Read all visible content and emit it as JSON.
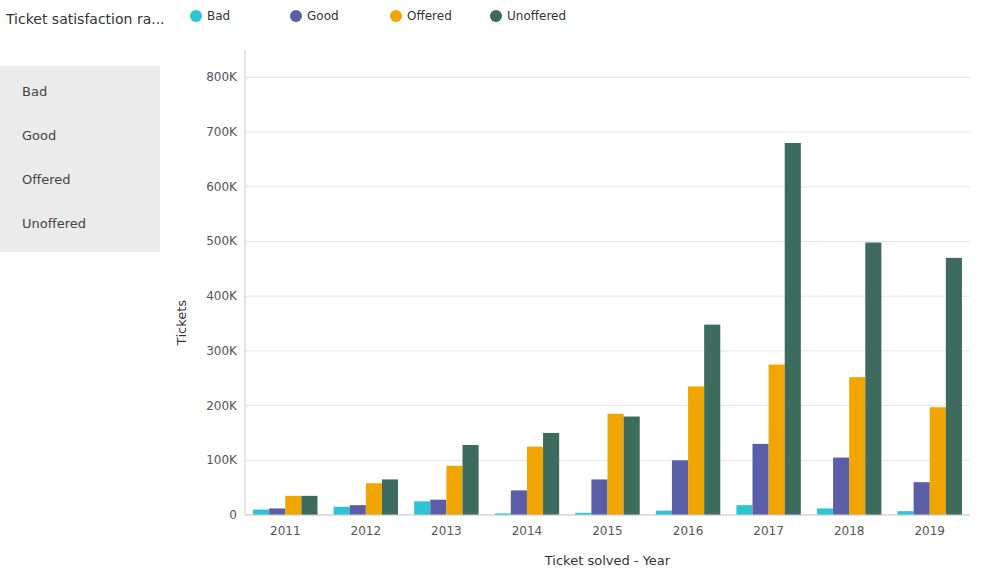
{
  "chart_data": {
    "type": "bar",
    "title": "Ticket satisfaction ra...",
    "x_label": "Ticket solved - Year",
    "y_label": "Tickets",
    "categories": [
      "2011",
      "2012",
      "2013",
      "2014",
      "2015",
      "2016",
      "2017",
      "2018",
      "2019"
    ],
    "series": [
      {
        "name": "Bad",
        "color": "#2ec4d6",
        "values": [
          10000,
          15000,
          25000,
          3000,
          4000,
          8000,
          18000,
          12000,
          7000
        ]
      },
      {
        "name": "Good",
        "color": "#5b5ea6",
        "values": [
          12000,
          18000,
          28000,
          45000,
          65000,
          100000,
          130000,
          105000,
          60000
        ]
      },
      {
        "name": "Offered",
        "color": "#f0a500",
        "values": [
          35000,
          58000,
          90000,
          125000,
          185000,
          235000,
          275000,
          252000,
          197000
        ]
      },
      {
        "name": "Unoffered",
        "color": "#3d6b5e",
        "values": [
          35000,
          65000,
          128000,
          150000,
          180000,
          348000,
          680000,
          498000,
          470000
        ]
      }
    ],
    "ylim": [
      0,
      850000
    ],
    "yticks": [
      0,
      {
        "value": 100000,
        "label": "100K"
      },
      {
        "value": 200000,
        "label": "200K"
      },
      {
        "value": 300000,
        "label": "300K"
      },
      {
        "value": 400000,
        "label": "400K"
      },
      {
        "value": 500000,
        "label": "500K"
      },
      {
        "value": 600000,
        "label": "600K"
      },
      {
        "value": 700000,
        "label": "700K"
      },
      {
        "value": 800000,
        "label": "800K"
      }
    ],
    "grid": true,
    "legend": "top"
  }
}
